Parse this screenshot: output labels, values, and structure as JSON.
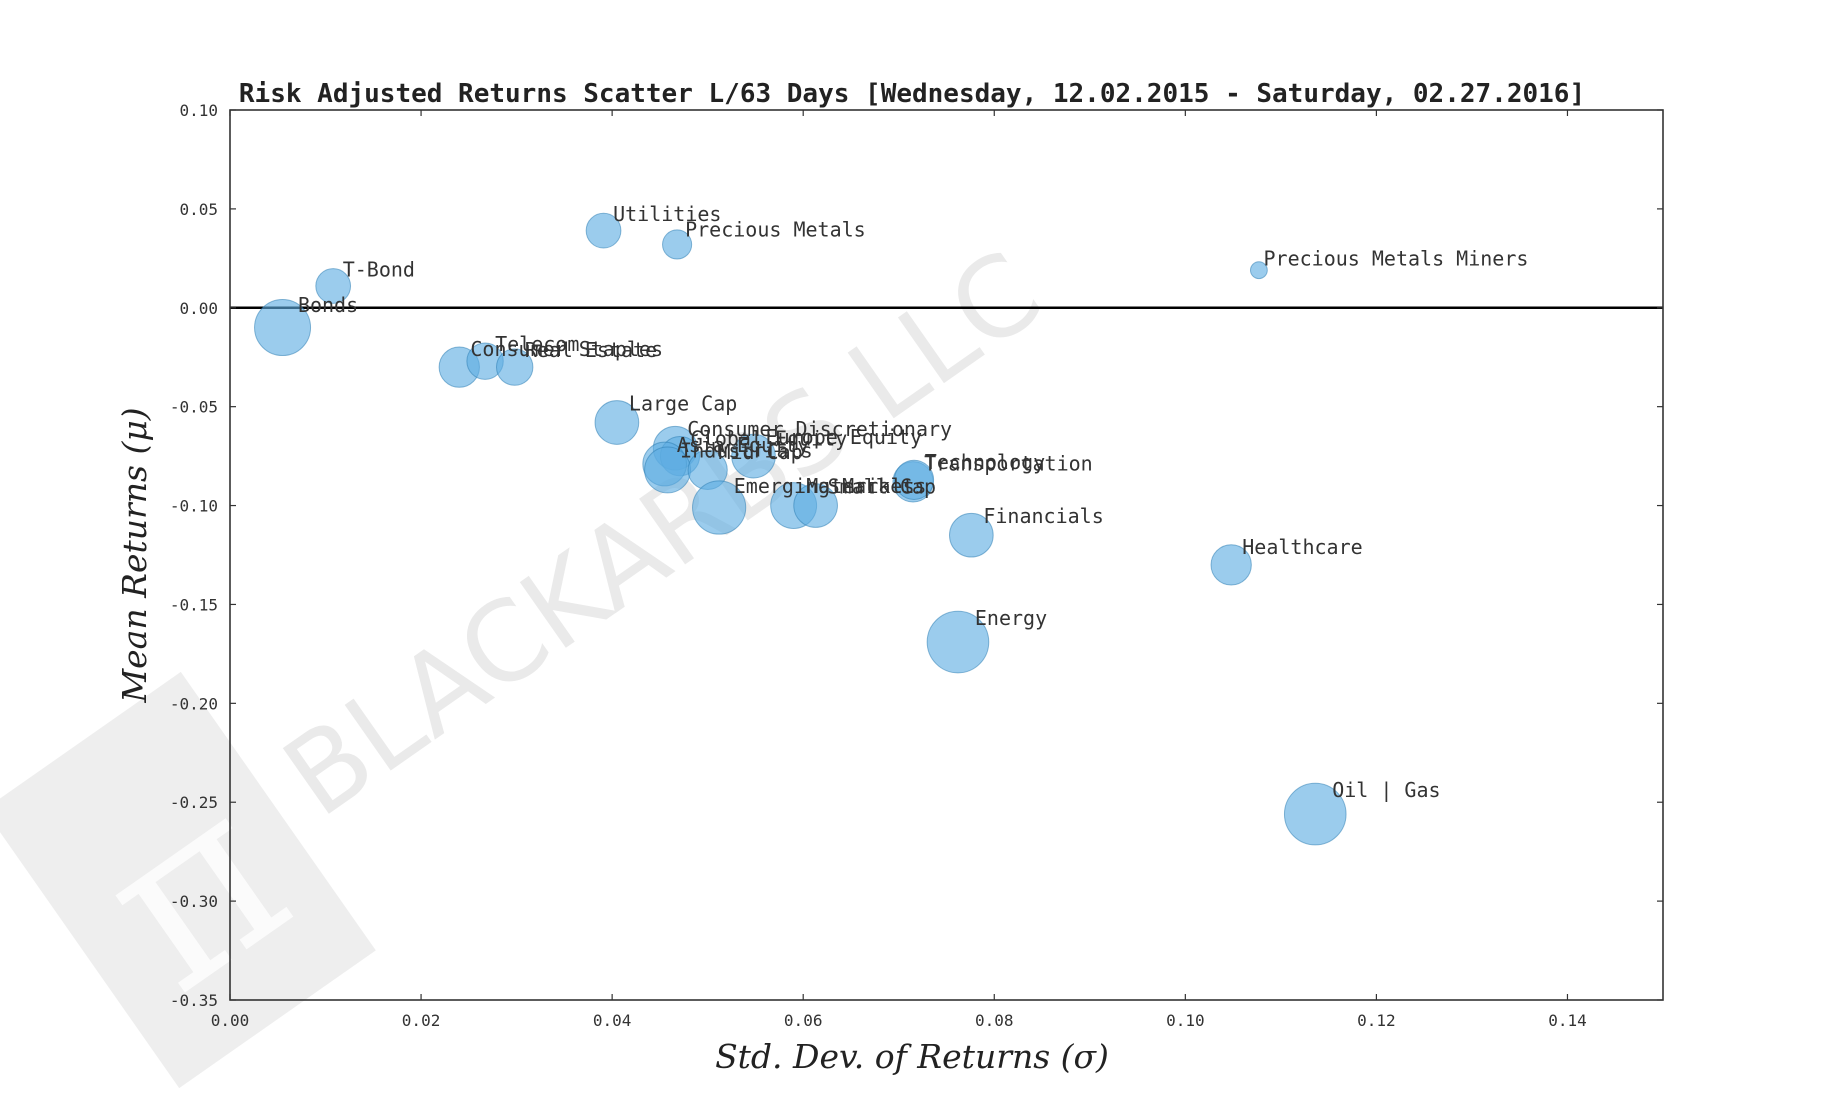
{
  "chart_data": {
    "type": "scatter",
    "title": "Risk Adjusted Returns Scatter L/63 Days [Wednesday, 12.02.2015 - Saturday, 02.27.2016]",
    "xlabel": "Std.  Dev.  of  Returns   (σ)",
    "ylabel": "Mean  Returns   (μ)",
    "xlim": [
      0.0,
      0.15
    ],
    "ylim": [
      -0.35,
      0.1
    ],
    "xticks": [
      "0.00",
      "0.02",
      "0.04",
      "0.06",
      "0.08",
      "0.10",
      "0.12",
      "0.14"
    ],
    "yticks": [
      "0.10",
      "0.05",
      "0.00",
      "-0.05",
      "-0.10",
      "-0.15",
      "-0.20",
      "-0.25",
      "-0.30",
      "-0.35"
    ],
    "zero_line": true,
    "grid": false,
    "point_color": "#5dade2",
    "points": [
      {
        "label": "Bonds",
        "x": 0.0055,
        "y": -0.01,
        "size": 1.0
      },
      {
        "label": "T-Bond",
        "x": 0.0108,
        "y": 0.011,
        "size": 0.62
      },
      {
        "label": "Utilities",
        "x": 0.0391,
        "y": 0.039,
        "size": 0.62
      },
      {
        "label": "Precious Metals",
        "x": 0.0468,
        "y": 0.032,
        "size": 0.52
      },
      {
        "label": "Precious Metals Miners",
        "x": 0.1077,
        "y": 0.019,
        "size": 0.3
      },
      {
        "label": "Consumer Staples",
        "x": 0.024,
        "y": -0.03,
        "size": 0.72
      },
      {
        "label": "Telecom",
        "x": 0.0267,
        "y": -0.027,
        "size": 0.65
      },
      {
        "label": "Real Estate",
        "x": 0.0298,
        "y": -0.03,
        "size": 0.65
      },
      {
        "label": "Large Cap",
        "x": 0.0405,
        "y": -0.058,
        "size": 0.78
      },
      {
        "label": "Consumer Discretionary",
        "x": 0.0466,
        "y": -0.071,
        "size": 0.78
      },
      {
        "label": "Global Equity",
        "x": 0.0471,
        "y": -0.075,
        "size": 0.7
      },
      {
        "label": "Europe Equity",
        "x": 0.0548,
        "y": -0.075,
        "size": 0.78
      },
      {
        "label": "Asia Equity",
        "x": 0.0455,
        "y": -0.079,
        "size": 0.78
      },
      {
        "label": "Industrials",
        "x": 0.0458,
        "y": -0.082,
        "size": 0.82
      },
      {
        "label": "Mid Cap",
        "x": 0.05,
        "y": -0.082,
        "size": 0.7
      },
      {
        "label": "Emerging Markets",
        "x": 0.0512,
        "y": -0.101,
        "size": 0.95
      },
      {
        "label": "Materials",
        "x": 0.059,
        "y": -0.1,
        "size": 0.82
      },
      {
        "label": "Small Cap",
        "x": 0.0613,
        "y": -0.1,
        "size": 0.78
      },
      {
        "label": "Transportation",
        "x": 0.0715,
        "y": -0.088,
        "size": 0.72
      },
      {
        "label": "Technology",
        "x": 0.0716,
        "y": -0.087,
        "size": 0.7
      },
      {
        "label": "Financials",
        "x": 0.0776,
        "y": -0.115,
        "size": 0.78
      },
      {
        "label": "Healthcare",
        "x": 0.1048,
        "y": -0.13,
        "size": 0.72
      },
      {
        "label": "Energy",
        "x": 0.0762,
        "y": -0.169,
        "size": 1.1
      },
      {
        "label": "Oil | Gas",
        "x": 0.1136,
        "y": -0.256,
        "size": 1.1
      }
    ]
  }
}
